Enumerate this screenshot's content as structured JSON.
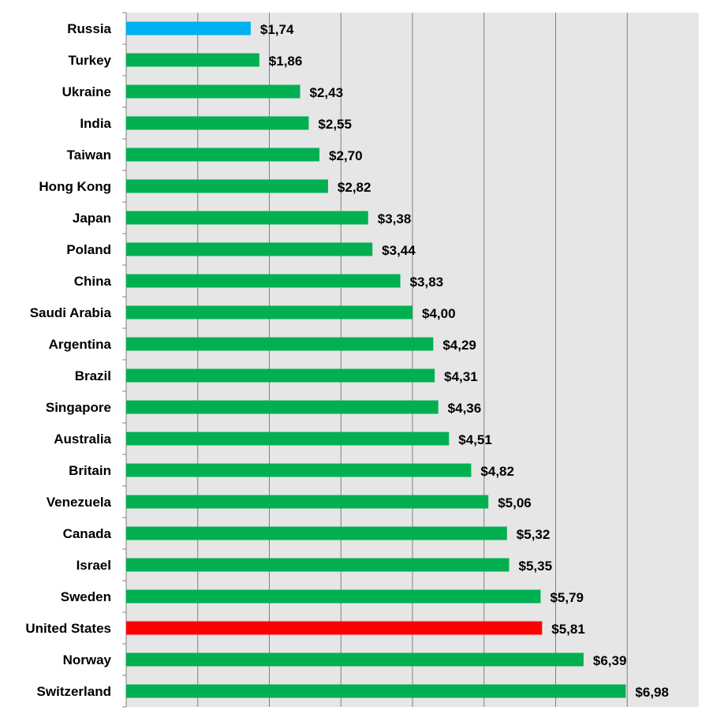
{
  "chart_data": {
    "type": "bar",
    "orientation": "horizontal",
    "title": "",
    "xlabel": "",
    "ylabel": "",
    "xlim": [
      0,
      8
    ],
    "grid": true,
    "legend": "none",
    "categories": [
      "Russia",
      "Turkey",
      "Ukraine",
      "India",
      "Taiwan",
      "Hong Kong",
      "Japan",
      "Poland",
      "China",
      "Saudi Arabia",
      "Argentina",
      "Brazil",
      "Singapore",
      "Australia",
      "Britain",
      "Venezuela",
      "Canada",
      "Israel",
      "Sweden",
      "United States",
      "Norway",
      "Switzerland"
    ],
    "values": [
      1.74,
      1.86,
      2.43,
      2.55,
      2.7,
      2.82,
      3.38,
      3.44,
      3.83,
      4.0,
      4.29,
      4.31,
      4.36,
      4.51,
      4.82,
      5.06,
      5.32,
      5.35,
      5.79,
      5.81,
      6.39,
      6.98
    ],
    "value_labels": [
      "$1,74",
      "$1,86",
      "$2,43",
      "$2,55",
      "$2,70",
      "$2,82",
      "$3,38",
      "$3,44",
      "$3,83",
      "$4,00",
      "$4,29",
      "$4,31",
      "$4,36",
      "$4,51",
      "$4,82",
      "$5,06",
      "$5,32",
      "$5,35",
      "$5,79",
      "$5,81",
      "$6,39",
      "$6,98"
    ],
    "colors": {
      "default": "#00b050",
      "highlight_low": "#00b0f0",
      "highlight_us": "#ff0000",
      "plot_background": "#e6e6e6",
      "gridline": "#808080"
    },
    "bar_color_roles": [
      "highlight_low",
      "default",
      "default",
      "default",
      "default",
      "default",
      "default",
      "default",
      "default",
      "default",
      "default",
      "default",
      "default",
      "default",
      "default",
      "default",
      "default",
      "default",
      "default",
      "highlight_us",
      "default",
      "default"
    ]
  }
}
